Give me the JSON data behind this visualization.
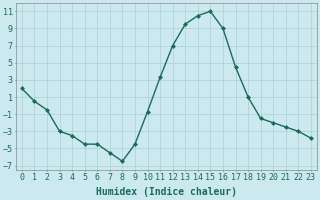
{
  "x": [
    0,
    1,
    2,
    3,
    4,
    5,
    6,
    7,
    8,
    9,
    10,
    11,
    12,
    13,
    14,
    15,
    16,
    17,
    18,
    19,
    20,
    21,
    22,
    23
  ],
  "y": [
    2,
    0.5,
    -0.5,
    -3,
    -3.5,
    -4.5,
    -4.5,
    -5.5,
    -6.5,
    -4.5,
    -0.7,
    3.3,
    7,
    9.5,
    10.5,
    11,
    9,
    4.5,
    1,
    -1.5,
    -2,
    -2.5,
    -3,
    -3.8
  ],
  "line_color": "#1a6b5a",
  "marker": "D",
  "marker_size": 2,
  "bg_color": "#cce9ef",
  "grid_color": "#aacfd8",
  "xlabel": "Humidex (Indice chaleur)",
  "xlabel_fontsize": 7,
  "xlim": [
    -0.5,
    23.5
  ],
  "ylim": [
    -7.5,
    12
  ],
  "yticks": [
    -7,
    -5,
    -3,
    -1,
    1,
    3,
    5,
    7,
    9,
    11
  ],
  "xticks": [
    0,
    1,
    2,
    3,
    4,
    5,
    6,
    7,
    8,
    9,
    10,
    11,
    12,
    13,
    14,
    15,
    16,
    17,
    18,
    19,
    20,
    21,
    22,
    23
  ],
  "tick_fontsize": 6,
  "linewidth": 1.0
}
